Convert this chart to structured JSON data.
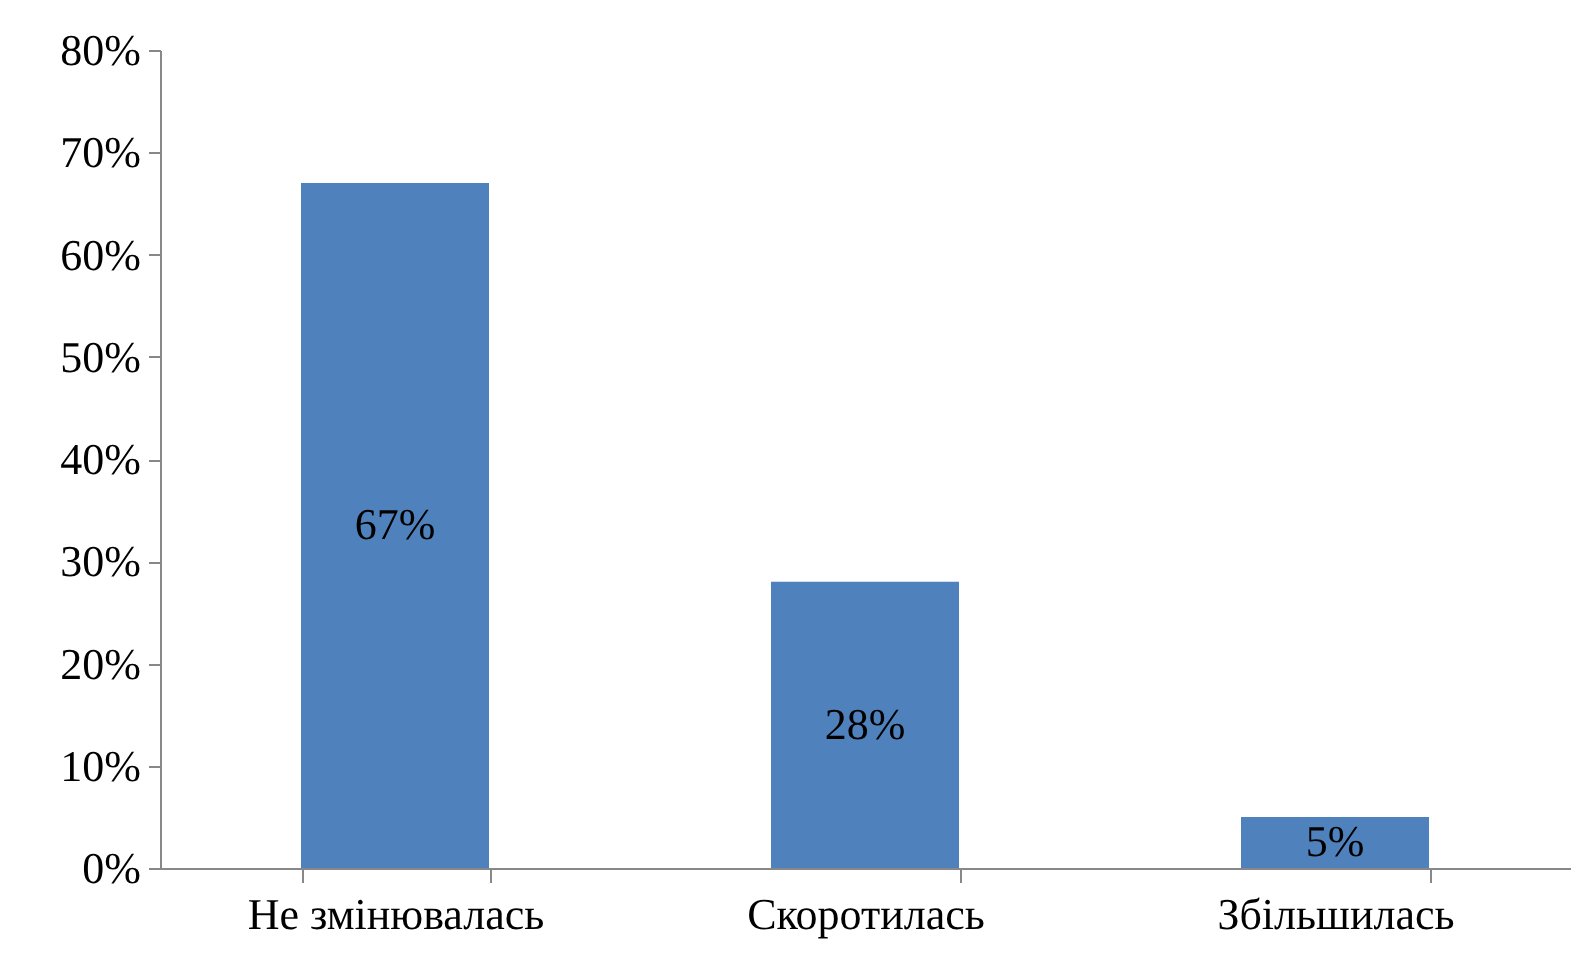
{
  "chart_data": {
    "type": "bar",
    "categories": [
      "Не змінювалась",
      "Скоротилась",
      "Збільшилась"
    ],
    "values": [
      67,
      28,
      5
    ],
    "color": "#4f81bd",
    "value_labels": [
      "67%",
      "28%",
      "5%"
    ],
    "ylim": [
      0,
      80
    ],
    "yticks": [
      {
        "value": 0,
        "label": "0%"
      },
      {
        "value": 10,
        "label": "10%"
      },
      {
        "value": 20,
        "label": "20%"
      },
      {
        "value": 30,
        "label": "30%"
      },
      {
        "value": 40,
        "label": "40%"
      },
      {
        "value": 50,
        "label": "50%"
      },
      {
        "value": 60,
        "label": "60%"
      },
      {
        "value": 70,
        "label": "70%"
      },
      {
        "value": 80,
        "label": "80%"
      }
    ],
    "grid": false
  }
}
